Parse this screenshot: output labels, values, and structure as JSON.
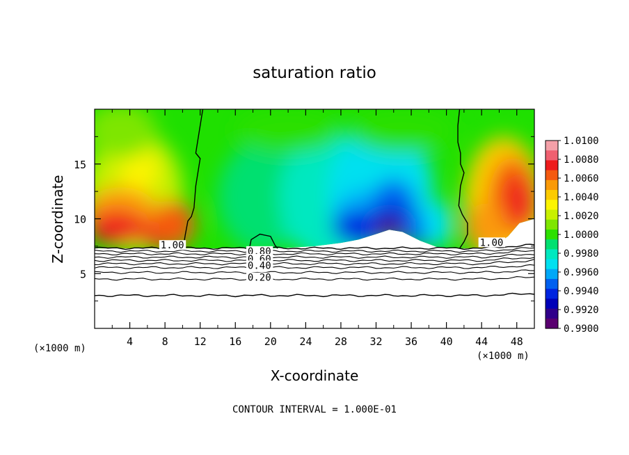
{
  "chart_data": {
    "type": "heatmap",
    "title": "saturation ratio",
    "xlabel": "X-coordinate",
    "ylabel": "Z-coordinate",
    "x_unit_left": "(×1000 m)",
    "x_unit_right": "(×1000 m)",
    "footer": "CONTOUR INTERVAL = 1.000E-01",
    "xlim": [
      0,
      50
    ],
    "ylim": [
      0,
      20
    ],
    "x_ticks": [
      4,
      8,
      12,
      16,
      20,
      24,
      28,
      32,
      36,
      40,
      44,
      48
    ],
    "x_tick_labels": [
      "4",
      "8",
      "12",
      "16",
      "20",
      "24",
      "28",
      "32",
      "36",
      "40",
      "44",
      "48"
    ],
    "y_ticks": [
      5,
      10,
      15
    ],
    "y_tick_labels": [
      "5",
      "10",
      "15"
    ],
    "colorbar": {
      "min": 0.99,
      "max": 1.01,
      "labels": [
        "1.0100",
        "1.0080",
        "1.0060",
        "1.0040",
        "1.0020",
        "1.0000",
        "0.9980",
        "0.9960",
        "0.9940",
        "0.9920",
        "0.9900"
      ],
      "colors": [
        "#f4a0a8",
        "#f06070",
        "#ee1c1c",
        "#f45a10",
        "#fa9a08",
        "#fccb00",
        "#fcf400",
        "#c8f000",
        "#7ee600",
        "#2ce000",
        "#00e070",
        "#00e8c0",
        "#00e0f0",
        "#00a8f8",
        "#0060f0",
        "#0024e0",
        "#0000b8",
        "#30008a",
        "#5a0070"
      ]
    },
    "contour_labels": [
      {
        "text": "1.00",
        "x": 7.5,
        "y": 7.35
      },
      {
        "text": "1.00",
        "x": 43.8,
        "y": 7.6
      },
      {
        "text": "0.80",
        "x": 17.4,
        "y": 6.8
      },
      {
        "text": "0.60",
        "x": 17.4,
        "y": 6.1
      },
      {
        "text": "0.40",
        "x": 17.4,
        "y": 5.5
      },
      {
        "text": "0.20",
        "x": 17.4,
        "y": 4.4
      }
    ]
  }
}
